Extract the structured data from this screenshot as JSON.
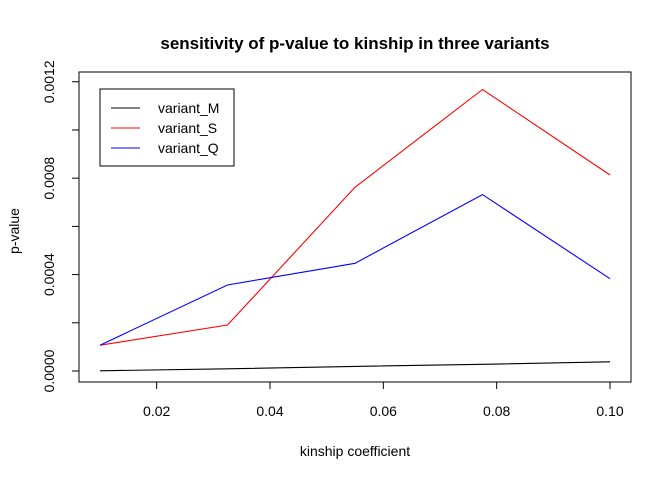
{
  "chart_data": {
    "type": "line",
    "title": "sensitivity of p-value to kinship in three variants",
    "xlabel": "kinship coefficient",
    "ylabel": "p-value",
    "x": [
      0.01,
      0.0325,
      0.055,
      0.0775,
      0.1
    ],
    "xlim": [
      0.01,
      0.1
    ],
    "ylim": [
      0,
      0.00117
    ],
    "x_ticks": [
      0.02,
      0.04,
      0.06,
      0.08,
      0.1
    ],
    "x_tick_labels": [
      "0.02",
      "0.04",
      "0.06",
      "0.08",
      "0.10"
    ],
    "y_ticks": [
      0,
      0.0004,
      0.0008,
      0.0012
    ],
    "y_tick_labels": [
      "0.0000",
      "0.0004",
      "0.0008",
      "0.0012"
    ],
    "grid": false,
    "legend_position": "top-left",
    "series": [
      {
        "name": "variant_M",
        "color": "#000000",
        "values": [
          1e-06,
          9e-06,
          1.9e-05,
          2.8e-05,
          3.8e-05
        ]
      },
      {
        "name": "variant_S",
        "color": "#ff0000",
        "values": [
          0.000107,
          0.000191,
          0.000762,
          0.001168,
          0.000813
        ]
      },
      {
        "name": "variant_Q",
        "color": "#0000ff",
        "values": [
          0.000107,
          0.000357,
          0.000447,
          0.000732,
          0.000383
        ]
      }
    ]
  }
}
